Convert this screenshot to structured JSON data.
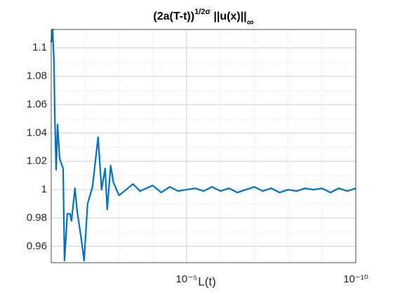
{
  "chart_data": {
    "type": "line",
    "title": {
      "base": "(2a(T-t))",
      "sup": "1/2σ",
      "main": " ||u(x)||",
      "sub": "∞"
    },
    "xlabel": "L(t)",
    "xscale": "log",
    "xlim": [
      0.1,
      1e-10
    ],
    "xticks": [
      {
        "value": 1e-05,
        "label": "10⁻⁵"
      },
      {
        "value": 1e-10,
        "label": "10⁻¹⁰"
      }
    ],
    "ylim": [
      0.9485,
      1.113
    ],
    "yticks": [
      0.96,
      0.98,
      1,
      1.02,
      1.04,
      1.06,
      1.08,
      1.1
    ],
    "grid": true,
    "minor_grid": true,
    "x": [
      0.1,
      0.091,
      0.0827,
      0.0788,
      0.0716,
      0.0651,
      0.0565,
      0.0446,
      0.0405,
      0.0335,
      0.0277,
      0.0252,
      0.0199,
      0.0172,
      0.0129,
      0.0107,
      0.00843,
      0.00604,
      0.00413,
      0.00325,
      0.00256,
      0.00222,
      0.00175,
      0.00145,
      0.00099,
      0.000615,
      0.000383,
      0.000238,
      0.0001,
      5.62e-05,
      3.16e-05,
      1.78e-05,
      1e-05,
      5.62e-06,
      3.16e-06,
      1.78e-06,
      1e-06,
      5.62e-07,
      3.16e-07,
      1.78e-07,
      1e-07,
      5.62e-08,
      3.16e-08,
      1.78e-08,
      1e-08,
      5.62e-09,
      3.16e-09,
      1.78e-09,
      1e-09,
      5.62e-10,
      3.16e-10,
      1.78e-10,
      1e-10
    ],
    "series": [
      {
        "color": "#0072BD",
        "values": [
          1.104,
          1.113,
          1.089,
          1.054,
          1.014,
          1.046,
          1.022,
          1.015,
          0.95,
          0.983,
          0.983,
          0.978,
          1.001,
          0.985,
          0.965,
          0.95,
          0.99,
          1.002,
          1.037,
          1.0,
          1.015,
          0.986,
          1.017,
          1.005,
          0.996,
          1.0,
          1.004,
          0.999,
          1.003,
          0.998,
          1.002,
          0.999,
          1.0,
          1.001,
          0.999,
          1.002,
          0.999,
          1.001,
          0.998,
          1.0,
          1.002,
          0.999,
          1.001,
          0.998,
          1.0,
          0.999,
          1.001,
          1.0,
          1.001,
          0.998,
          1.001,
          0.999,
          1.001
        ]
      }
    ]
  }
}
